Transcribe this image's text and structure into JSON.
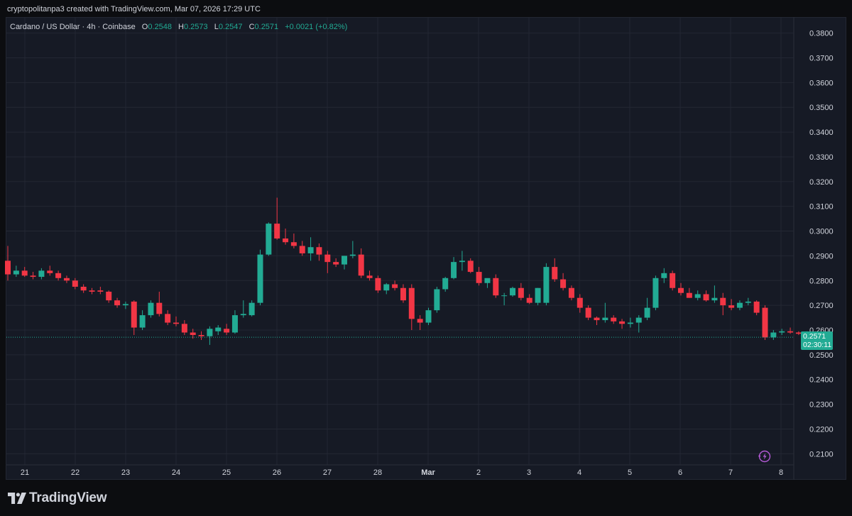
{
  "attribution": "cryptopolitanpa3 created with TradingView.com, Mar 07, 2026 17:29 UTC",
  "header": {
    "symbol": "Cardano / US Dollar · 4h · Coinbase",
    "open_label": "O",
    "open": "0.2548",
    "high_label": "H",
    "high": "0.2573",
    "low_label": "L",
    "low": "0.2547",
    "close_label": "C",
    "close": "0.2571",
    "change": "+0.0021 (+0.82%)"
  },
  "price_tag": {
    "price": "0.2571",
    "countdown": "02:30:11"
  },
  "logo": {
    "text": "TradingView"
  },
  "colors": {
    "up": "#22ab94",
    "down": "#f23645",
    "grid": "#232733",
    "background": "#161a25",
    "axis_text": "#d1d4dc",
    "last_price_line": "#22ab94",
    "bolt": "#b45ad6"
  },
  "chart_data": {
    "type": "candlestick",
    "interval": "4h",
    "y_ticks": [
      "0.3800",
      "0.3700",
      "0.3600",
      "0.3500",
      "0.3400",
      "0.3300",
      "0.3200",
      "0.3100",
      "0.3000",
      "0.2900",
      "0.2800",
      "0.2700",
      "0.2600",
      "0.2500",
      "0.2400",
      "0.2300",
      "0.2200",
      "0.2100"
    ],
    "ylim": [
      0.2055,
      0.3865
    ],
    "x_labels": [
      "21",
      "22",
      "23",
      "24",
      "25",
      "26",
      "27",
      "28",
      "Mar",
      "2",
      "3",
      "4",
      "5",
      "6",
      "7",
      "8"
    ],
    "last_price": 0.2571,
    "grid": true,
    "candles": [
      [
        0.288,
        0.294,
        0.28,
        0.2825
      ],
      [
        0.2825,
        0.286,
        0.2815,
        0.284
      ],
      [
        0.284,
        0.2855,
        0.2815,
        0.282
      ],
      [
        0.282,
        0.2835,
        0.2805,
        0.2815
      ],
      [
        0.2815,
        0.285,
        0.2805,
        0.284
      ],
      [
        0.284,
        0.286,
        0.282,
        0.283
      ],
      [
        0.283,
        0.284,
        0.28,
        0.281
      ],
      [
        0.281,
        0.282,
        0.279,
        0.28
      ],
      [
        0.28,
        0.281,
        0.2765,
        0.2775
      ],
      [
        0.2775,
        0.2785,
        0.275,
        0.276
      ],
      [
        0.276,
        0.277,
        0.2745,
        0.2755
      ],
      [
        0.276,
        0.2775,
        0.2745,
        0.2755
      ],
      [
        0.2755,
        0.276,
        0.271,
        0.272
      ],
      [
        0.272,
        0.273,
        0.269,
        0.27
      ],
      [
        0.27,
        0.2715,
        0.2685,
        0.2705
      ],
      [
        0.2715,
        0.272,
        0.258,
        0.261
      ],
      [
        0.261,
        0.268,
        0.26,
        0.266
      ],
      [
        0.266,
        0.272,
        0.265,
        0.271
      ],
      [
        0.271,
        0.2755,
        0.2655,
        0.2665
      ],
      [
        0.2665,
        0.268,
        0.262,
        0.263
      ],
      [
        0.263,
        0.2655,
        0.2615,
        0.2625
      ],
      [
        0.2625,
        0.264,
        0.258,
        0.259
      ],
      [
        0.259,
        0.2605,
        0.2565,
        0.258
      ],
      [
        0.258,
        0.2595,
        0.256,
        0.2575
      ],
      [
        0.2575,
        0.2615,
        0.254,
        0.2605
      ],
      [
        0.2595,
        0.262,
        0.258,
        0.261
      ],
      [
        0.2605,
        0.2625,
        0.258,
        0.259
      ],
      [
        0.259,
        0.268,
        0.2585,
        0.266
      ],
      [
        0.266,
        0.272,
        0.265,
        0.2665
      ],
      [
        0.266,
        0.272,
        0.2655,
        0.271
      ],
      [
        0.271,
        0.2925,
        0.27,
        0.2905
      ],
      [
        0.2905,
        0.3035,
        0.29,
        0.303
      ],
      [
        0.303,
        0.3135,
        0.2965,
        0.297
      ],
      [
        0.297,
        0.301,
        0.2945,
        0.2955
      ],
      [
        0.2955,
        0.299,
        0.293,
        0.294
      ],
      [
        0.294,
        0.296,
        0.29,
        0.291
      ],
      [
        0.291,
        0.2975,
        0.288,
        0.2935
      ],
      [
        0.2935,
        0.295,
        0.288,
        0.2905
      ],
      [
        0.2905,
        0.292,
        0.283,
        0.2875
      ],
      [
        0.2875,
        0.289,
        0.2855,
        0.2865
      ],
      [
        0.2865,
        0.29,
        0.2845,
        0.29
      ],
      [
        0.29,
        0.296,
        0.289,
        0.2905
      ],
      [
        0.2905,
        0.293,
        0.281,
        0.282
      ],
      [
        0.282,
        0.284,
        0.28,
        0.281
      ],
      [
        0.281,
        0.282,
        0.275,
        0.276
      ],
      [
        0.276,
        0.279,
        0.2745,
        0.2785
      ],
      [
        0.2785,
        0.28,
        0.276,
        0.277
      ],
      [
        0.277,
        0.2785,
        0.271,
        0.272
      ],
      [
        0.277,
        0.2785,
        0.26,
        0.2645
      ],
      [
        0.2645,
        0.266,
        0.26,
        0.263
      ],
      [
        0.263,
        0.269,
        0.262,
        0.268
      ],
      [
        0.268,
        0.2775,
        0.267,
        0.2765
      ],
      [
        0.2765,
        0.2815,
        0.2755,
        0.281
      ],
      [
        0.281,
        0.2895,
        0.2805,
        0.2875
      ],
      [
        0.2875,
        0.292,
        0.284,
        0.288
      ],
      [
        0.288,
        0.289,
        0.283,
        0.2835
      ],
      [
        0.2835,
        0.2855,
        0.278,
        0.279
      ],
      [
        0.279,
        0.28,
        0.277,
        0.281
      ],
      [
        0.281,
        0.2825,
        0.273,
        0.274
      ],
      [
        0.274,
        0.275,
        0.27,
        0.274
      ],
      [
        0.274,
        0.2775,
        0.2735,
        0.277
      ],
      [
        0.277,
        0.279,
        0.272,
        0.273
      ],
      [
        0.273,
        0.2745,
        0.2705,
        0.271
      ],
      [
        0.271,
        0.277,
        0.27,
        0.277
      ],
      [
        0.271,
        0.287,
        0.27,
        0.2855
      ],
      [
        0.2855,
        0.289,
        0.2795,
        0.2805
      ],
      [
        0.2805,
        0.283,
        0.276,
        0.277
      ],
      [
        0.277,
        0.278,
        0.272,
        0.273
      ],
      [
        0.273,
        0.2745,
        0.267,
        0.269
      ],
      [
        0.269,
        0.27,
        0.264,
        0.265
      ],
      [
        0.265,
        0.2655,
        0.262,
        0.264
      ],
      [
        0.264,
        0.271,
        0.263,
        0.265
      ],
      [
        0.265,
        0.266,
        0.2625,
        0.2635
      ],
      [
        0.2635,
        0.2645,
        0.2605,
        0.2625
      ],
      [
        0.2625,
        0.265,
        0.261,
        0.263
      ],
      [
        0.263,
        0.266,
        0.259,
        0.265
      ],
      [
        0.265,
        0.273,
        0.264,
        0.269
      ],
      [
        0.269,
        0.282,
        0.268,
        0.281
      ],
      [
        0.281,
        0.285,
        0.279,
        0.283
      ],
      [
        0.283,
        0.284,
        0.276,
        0.277
      ],
      [
        0.277,
        0.279,
        0.274,
        0.275
      ],
      [
        0.275,
        0.277,
        0.273,
        0.273
      ],
      [
        0.273,
        0.276,
        0.272,
        0.2745
      ],
      [
        0.2745,
        0.276,
        0.2715,
        0.272
      ],
      [
        0.272,
        0.278,
        0.271,
        0.273
      ],
      [
        0.273,
        0.275,
        0.266,
        0.27
      ],
      [
        0.27,
        0.2725,
        0.268,
        0.269
      ],
      [
        0.269,
        0.272,
        0.268,
        0.271
      ],
      [
        0.271,
        0.273,
        0.27,
        0.2715
      ],
      [
        0.2715,
        0.272,
        0.266,
        0.267
      ],
      [
        0.269,
        0.27,
        0.256,
        0.257
      ],
      [
        0.257,
        0.26,
        0.256,
        0.259
      ],
      [
        0.259,
        0.2605,
        0.258,
        0.2595
      ],
      [
        0.2595,
        0.261,
        0.2585,
        0.259
      ],
      [
        0.259,
        0.2595,
        0.258,
        0.2585
      ],
      [
        0.2585,
        0.2595,
        0.2565,
        0.259
      ],
      [
        0.259,
        0.2595,
        0.253,
        0.2555
      ],
      [
        0.2548,
        0.2573,
        0.2547,
        0.2571
      ]
    ]
  }
}
